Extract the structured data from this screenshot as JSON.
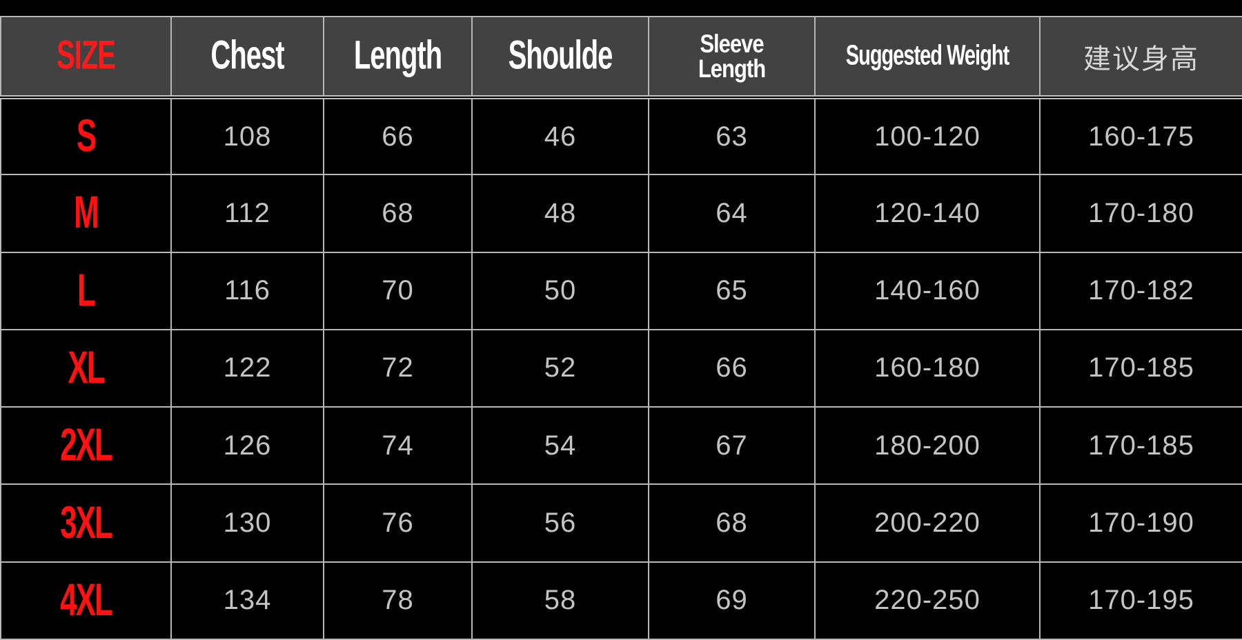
{
  "colors": {
    "size_text": "#ff1111",
    "header_bg": "#424242",
    "cell_bg": "#000000",
    "grid": "#b8b8b8",
    "value_text": "#c4c4c4"
  },
  "header": [
    "SIZE",
    "Chest",
    "Length",
    "Shoulde",
    "Sleeve Length",
    "Suggested Weight",
    "建议身高"
  ],
  "header_sleeve": [
    "Sleeve",
    "Length"
  ],
  "rows": [
    [
      "S",
      "108",
      "66",
      "46",
      "63",
      "100-120",
      "160-175"
    ],
    [
      "M",
      "112",
      "68",
      "48",
      "64",
      "120-140",
      "170-180"
    ],
    [
      "L",
      "116",
      "70",
      "50",
      "65",
      "140-160",
      "170-182"
    ],
    [
      "XL",
      "122",
      "72",
      "52",
      "66",
      "160-180",
      "170-185"
    ],
    [
      "2XL",
      "126",
      "74",
      "54",
      "67",
      "180-200",
      "170-185"
    ],
    [
      "3XL",
      "130",
      "76",
      "56",
      "68",
      "200-220",
      "170-190"
    ],
    [
      "4XL",
      "134",
      "78",
      "58",
      "69",
      "220-250",
      "170-195"
    ]
  ]
}
